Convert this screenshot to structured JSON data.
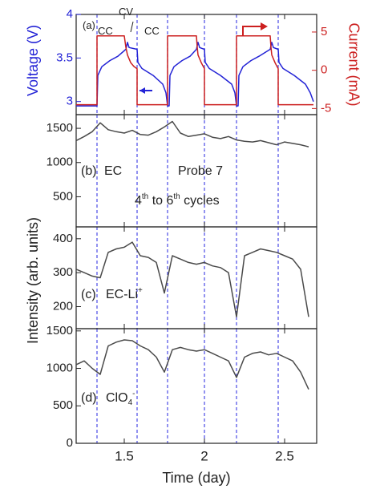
{
  "chart_data": [
    {
      "type": "line",
      "ylabel": "Voltage (V)",
      "y2label": "Current (mA)",
      "xlim": [
        1.2,
        2.7
      ],
      "xticks": [
        1.5,
        2,
        2.5
      ],
      "ylim": [
        2.85,
        4.0
      ],
      "yticks": [
        3,
        3.5,
        4
      ],
      "y2lim": [
        -5.8,
        7.3
      ],
      "y2ticks": [
        -5,
        0,
        5
      ],
      "vlines": [
        1.33,
        1.58,
        1.77,
        2.0,
        2.2,
        2.46
      ],
      "vline_color": "#4a4ae6",
      "series": [
        {
          "color": "#2323d6",
          "axis": "y",
          "x": [
            1.2,
            1.33,
            1.335,
            1.36,
            1.41,
            1.46,
            1.51,
            1.52,
            1.53,
            1.58,
            1.585,
            1.61,
            1.68,
            1.74,
            1.76,
            1.77,
            1.78,
            1.785,
            1.81,
            1.86,
            1.91,
            1.95,
            1.96,
            1.97,
            2.0,
            2.005,
            2.03,
            2.1,
            2.17,
            2.19,
            2.2,
            2.21,
            2.215,
            2.24,
            2.29,
            2.34,
            2.41,
            2.42,
            2.43,
            2.46,
            2.465,
            2.49,
            2.56,
            2.63,
            2.66,
            2.68
          ],
          "values": [
            2.95,
            2.95,
            3.3,
            3.4,
            3.47,
            3.52,
            3.6,
            3.68,
            3.62,
            3.6,
            3.45,
            3.38,
            3.3,
            3.2,
            3.1,
            2.95,
            2.95,
            3.3,
            3.4,
            3.47,
            3.52,
            3.6,
            3.68,
            3.62,
            3.6,
            3.45,
            3.38,
            3.3,
            3.2,
            3.1,
            2.95,
            2.95,
            3.3,
            3.4,
            3.47,
            3.52,
            3.6,
            3.68,
            3.62,
            3.6,
            3.45,
            3.38,
            3.3,
            3.2,
            3.1,
            3.0
          ]
        },
        {
          "color": "#cc1f1f",
          "axis": "y2",
          "x": [
            1.2,
            1.33,
            1.33,
            1.5,
            1.51,
            1.52,
            1.54,
            1.56,
            1.58,
            1.58,
            1.77,
            1.77,
            1.95,
            1.955,
            1.96,
            1.98,
            2.0,
            2.0,
            2.2,
            2.2,
            2.41,
            2.415,
            2.42,
            2.44,
            2.46,
            2.46,
            2.68
          ],
          "values": [
            -4.5,
            -4.5,
            4.5,
            4.5,
            3,
            2,
            1,
            0.5,
            0.2,
            -4.5,
            -4.5,
            4.5,
            4.5,
            3,
            2,
            1,
            0.2,
            -4.5,
            -4.5,
            4.5,
            4.5,
            3,
            2,
            1,
            0.2,
            -4.5,
            -4.5
          ]
        }
      ],
      "annotations": [
        [
          {
            "text": "(a)"
          }
        ],
        [
          {
            "text": "CC"
          }
        ],
        [
          {
            "text": "CV"
          }
        ],
        [
          {
            "text": "CC"
          }
        ]
      ]
    },
    {
      "type": "line",
      "xlim": [
        1.2,
        2.7
      ],
      "xticks": [
        1.5,
        2,
        2.5
      ],
      "ylim": [
        60,
        1700
      ],
      "yticks": [
        500,
        1000,
        1500
      ],
      "color": "#4a4a4a",
      "x": [
        1.2,
        1.25,
        1.3,
        1.35,
        1.4,
        1.45,
        1.5,
        1.55,
        1.6,
        1.65,
        1.7,
        1.75,
        1.8,
        1.85,
        1.9,
        1.95,
        2.0,
        2.05,
        2.1,
        2.15,
        2.2,
        2.25,
        2.3,
        2.35,
        2.4,
        2.45,
        2.5,
        2.55,
        2.6,
        2.65
      ],
      "values": [
        1320,
        1380,
        1450,
        1580,
        1480,
        1450,
        1430,
        1470,
        1410,
        1400,
        1450,
        1520,
        1600,
        1430,
        1380,
        1400,
        1420,
        1370,
        1350,
        1380,
        1330,
        1310,
        1300,
        1320,
        1290,
        1260,
        1300,
        1280,
        1260,
        1230
      ],
      "annotations": [
        [
          {
            "text": "(b)"
          }
        ],
        [
          {
            "text": "EC"
          }
        ],
        [
          {
            "text": "Probe 7"
          }
        ],
        [
          {
            "text": "4"
          },
          {
            "sup": "th"
          },
          {
            "text": " to 6"
          },
          {
            "sup": "th"
          },
          {
            "text": " cycles"
          }
        ]
      ]
    },
    {
      "type": "line",
      "ylabel": "Intensity (arb. units)",
      "xlim": [
        1.2,
        2.7
      ],
      "xticks": [
        1.5,
        2,
        2.5
      ],
      "ylim": [
        135,
        435
      ],
      "yticks": [
        200,
        300,
        400
      ],
      "color": "#4a4a4a",
      "x": [
        1.2,
        1.25,
        1.3,
        1.35,
        1.4,
        1.45,
        1.5,
        1.55,
        1.6,
        1.65,
        1.7,
        1.75,
        1.8,
        1.85,
        1.9,
        1.95,
        2.0,
        2.05,
        2.1,
        2.15,
        2.2,
        2.25,
        2.3,
        2.35,
        2.4,
        2.45,
        2.5,
        2.55,
        2.6,
        2.65
      ],
      "values": [
        310,
        300,
        290,
        285,
        360,
        370,
        375,
        390,
        350,
        345,
        330,
        240,
        350,
        340,
        330,
        325,
        330,
        320,
        315,
        300,
        170,
        350,
        360,
        370,
        365,
        360,
        350,
        340,
        310,
        170
      ],
      "annotations": [
        [
          {
            "text": "(c)"
          }
        ],
        [
          {
            "text": "EC-Li"
          },
          {
            "sup": "+"
          }
        ]
      ]
    },
    {
      "type": "line",
      "xlabel": "Time (day)",
      "xlim": [
        1.2,
        2.7
      ],
      "xticks": [
        1.5,
        2,
        2.5
      ],
      "ylim": [
        0,
        1530
      ],
      "yticks": [
        0,
        500,
        1000,
        1500
      ],
      "color": "#4a4a4a",
      "x": [
        1.2,
        1.25,
        1.3,
        1.35,
        1.4,
        1.45,
        1.5,
        1.55,
        1.6,
        1.65,
        1.7,
        1.75,
        1.8,
        1.85,
        1.9,
        1.95,
        2.0,
        2.05,
        2.1,
        2.15,
        2.2,
        2.25,
        2.3,
        2.35,
        2.4,
        2.45,
        2.5,
        2.55,
        2.6,
        2.65
      ],
      "values": [
        1050,
        1100,
        1000,
        920,
        1300,
        1350,
        1380,
        1370,
        1300,
        1250,
        1150,
        950,
        1250,
        1280,
        1250,
        1230,
        1250,
        1200,
        1150,
        1100,
        880,
        1150,
        1200,
        1220,
        1180,
        1200,
        1150,
        1100,
        950,
        720
      ],
      "annotations": [
        [
          {
            "text": "(d)"
          }
        ],
        [
          {
            "text": "ClO"
          },
          {
            "sub": "4"
          },
          {
            "sup": "-"
          }
        ]
      ]
    }
  ]
}
